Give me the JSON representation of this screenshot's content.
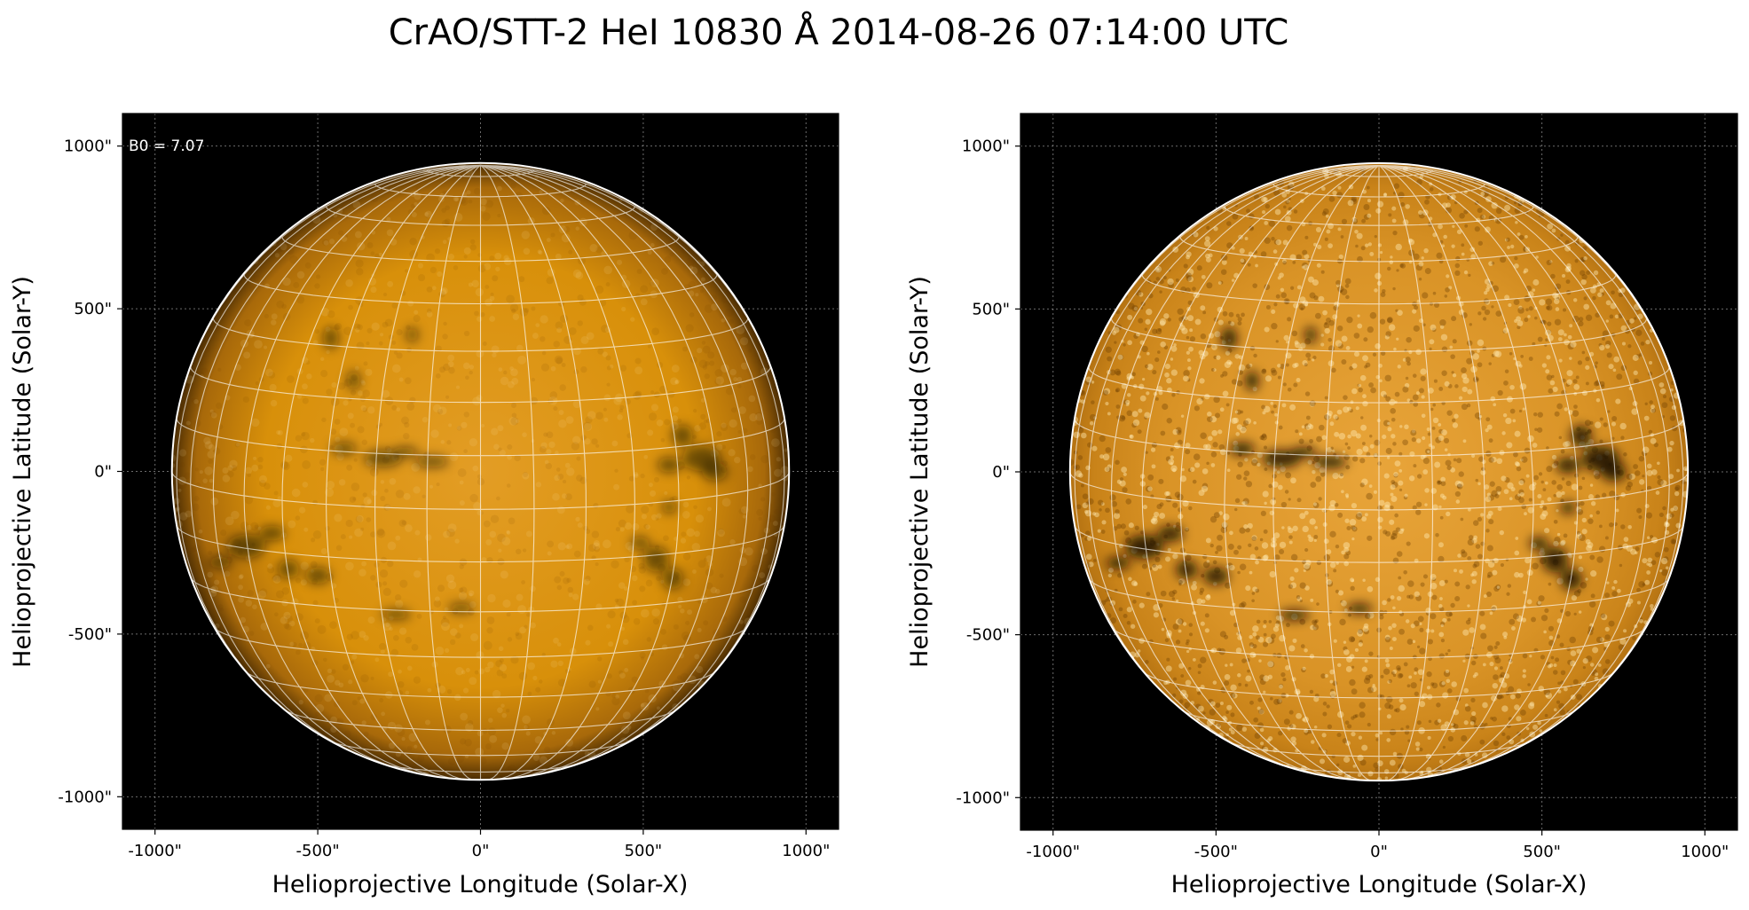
{
  "figure": {
    "title": "CrAO/STT-2 HeI 10830 Å 2014-08-26 07:14:00 UTC"
  },
  "colors": {
    "disk_base": "#d8900a",
    "disk_dark": "#1a0d00",
    "disk_bright": "#ffe9b0",
    "background": "#000000",
    "grid": "#ffffff"
  },
  "panels": [
    {
      "name": "original",
      "annotation": "B0 = 7.07",
      "xlabel": "Helioprojective Longitude (Solar-X)",
      "ylabel": "Helioprojective Latitude (Solar-Y)",
      "xlim": [
        -1100,
        1100
      ],
      "ylim": [
        -1100,
        1100
      ],
      "xticks": [
        "-1000\"",
        "-500\"",
        "0\"",
        "500\"",
        "1000\""
      ],
      "yticks": [
        "1000\"",
        "500\"",
        "0\"",
        "-500\"",
        "-1000\""
      ],
      "solar_radius": 948,
      "contrast": "normal"
    },
    {
      "name": "enhanced",
      "annotation": "",
      "xlabel": "Helioprojective Longitude (Solar-X)",
      "ylabel": "Helioprojective Latitude (Solar-Y)",
      "xlim": [
        -1100,
        1100
      ],
      "ylim": [
        -1100,
        1100
      ],
      "xticks": [
        "-1000\"",
        "-500\"",
        "0\"",
        "500\"",
        "1000\""
      ],
      "yticks": [
        "1000\"",
        "500\"",
        "0\"",
        "-500\"",
        "-1000\""
      ],
      "solar_radius": 948,
      "contrast": "enhanced"
    }
  ]
}
